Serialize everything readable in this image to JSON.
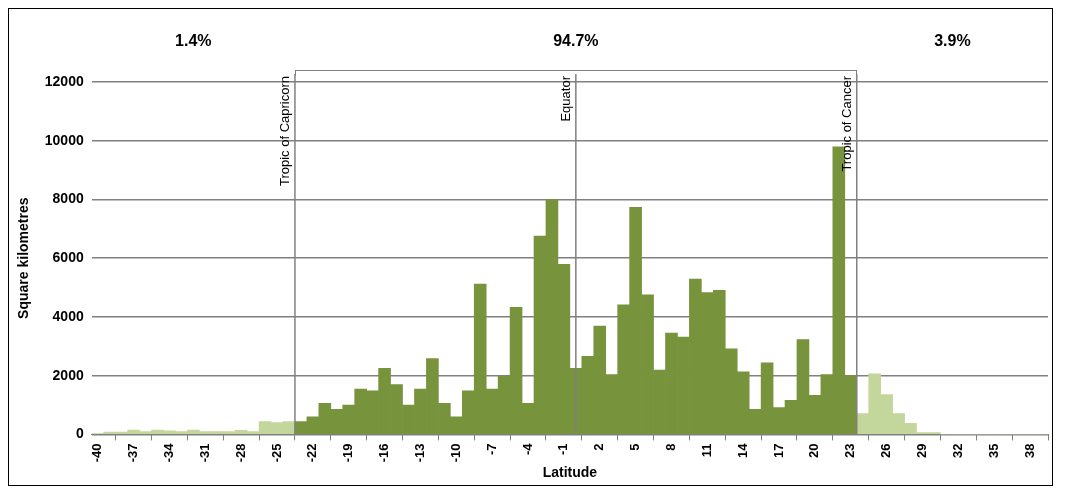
{
  "chart_data": {
    "type": "bar",
    "xlabel": "Latitude",
    "ylabel": "Square kilometres",
    "x": [
      -40,
      -39,
      -38,
      -37,
      -36,
      -35,
      -34,
      -33,
      -32,
      -31,
      -30,
      -29,
      -28,
      -27,
      -26,
      -25,
      -24,
      -23,
      -22,
      -21,
      -20,
      -19,
      -18,
      -17,
      -16,
      -15,
      -14,
      -13,
      -12,
      -11,
      -10,
      -9,
      -8,
      -7,
      -6,
      -5,
      -4,
      -3,
      -2,
      -1,
      0,
      1,
      2,
      3,
      4,
      5,
      6,
      7,
      8,
      9,
      10,
      11,
      12,
      13,
      14,
      15,
      16,
      17,
      18,
      19,
      20,
      21,
      22,
      23,
      24,
      25,
      26,
      27,
      28,
      29,
      30,
      31,
      32,
      33,
      34,
      35,
      36,
      37,
      38,
      39
    ],
    "values": [
      30,
      80,
      80,
      150,
      100,
      150,
      120,
      100,
      150,
      100,
      100,
      100,
      140,
      100,
      440,
      400,
      440,
      440,
      600,
      1060,
      850,
      1000,
      1540,
      1480,
      2250,
      1700,
      1000,
      1540,
      2580,
      1060,
      600,
      1480,
      5120,
      1540,
      1980,
      4330,
      1060,
      6750,
      8000,
      5790,
      2250,
      2660,
      3690,
      2040,
      4410,
      7730,
      4750,
      2190,
      3450,
      3310,
      5290,
      4830,
      4910,
      2910,
      2130,
      850,
      2440,
      910,
      1160,
      3230,
      1330,
      2040,
      9790,
      2000,
      710,
      2060,
      1360,
      710,
      380,
      60,
      60,
      0,
      0,
      0,
      0,
      0,
      0,
      0,
      0,
      0
    ],
    "colors": [
      "#c3d69b",
      "#c3d69b",
      "#c3d69b",
      "#c3d69b",
      "#c3d69b",
      "#c3d69b",
      "#c3d69b",
      "#c3d69b",
      "#c3d69b",
      "#c3d69b",
      "#c3d69b",
      "#c3d69b",
      "#c3d69b",
      "#c3d69b",
      "#c3d69b",
      "#c3d69b",
      "#c3d69b",
      "#77933c",
      "#77933c",
      "#77933c",
      "#77933c",
      "#77933c",
      "#77933c",
      "#77933c",
      "#77933c",
      "#77933c",
      "#77933c",
      "#77933c",
      "#77933c",
      "#77933c",
      "#77933c",
      "#77933c",
      "#77933c",
      "#77933c",
      "#77933c",
      "#77933c",
      "#77933c",
      "#77933c",
      "#77933c",
      "#77933c",
      "#77933c",
      "#77933c",
      "#77933c",
      "#77933c",
      "#77933c",
      "#77933c",
      "#77933c",
      "#77933c",
      "#77933c",
      "#77933c",
      "#77933c",
      "#77933c",
      "#77933c",
      "#77933c",
      "#77933c",
      "#77933c",
      "#77933c",
      "#77933c",
      "#77933c",
      "#77933c",
      "#77933c",
      "#77933c",
      "#77933c",
      "#77933c",
      "#c3d69b",
      "#c3d69b",
      "#c3d69b",
      "#c3d69b",
      "#c3d69b",
      "#c3d69b",
      "#c3d69b",
      "#c3d69b",
      "#c3d69b",
      "#c3d69b",
      "#c3d69b",
      "#c3d69b",
      "#c3d69b",
      "#c3d69b",
      "#c3d69b",
      "#c3d69b"
    ],
    "xlim": [
      -40.5,
      39.5
    ],
    "xticks": [
      -40,
      -37,
      -34,
      -31,
      -28,
      -25,
      -22,
      -19,
      -16,
      -13,
      -10,
      -7,
      -4,
      -1,
      2,
      5,
      8,
      11,
      14,
      17,
      20,
      23,
      26,
      29,
      32,
      35,
      38
    ],
    "ylim": [
      0,
      12000
    ],
    "yticks": [
      0,
      2000,
      4000,
      6000,
      8000,
      10000,
      12000
    ],
    "grid": "y",
    "legend": false,
    "ref_lines": [
      {
        "axis": "x",
        "value": -23.5,
        "label": "Tropic of Capricorn",
        "color": "#808080"
      },
      {
        "axis": "x",
        "value": 0,
        "label": "Equator",
        "color": "#808080"
      },
      {
        "axis": "x",
        "value": 23.5,
        "label": "Tropic of Cancer",
        "color": "#808080"
      }
    ],
    "annotations": [
      "1.4%",
      "94.7%",
      "3.9%"
    ]
  }
}
